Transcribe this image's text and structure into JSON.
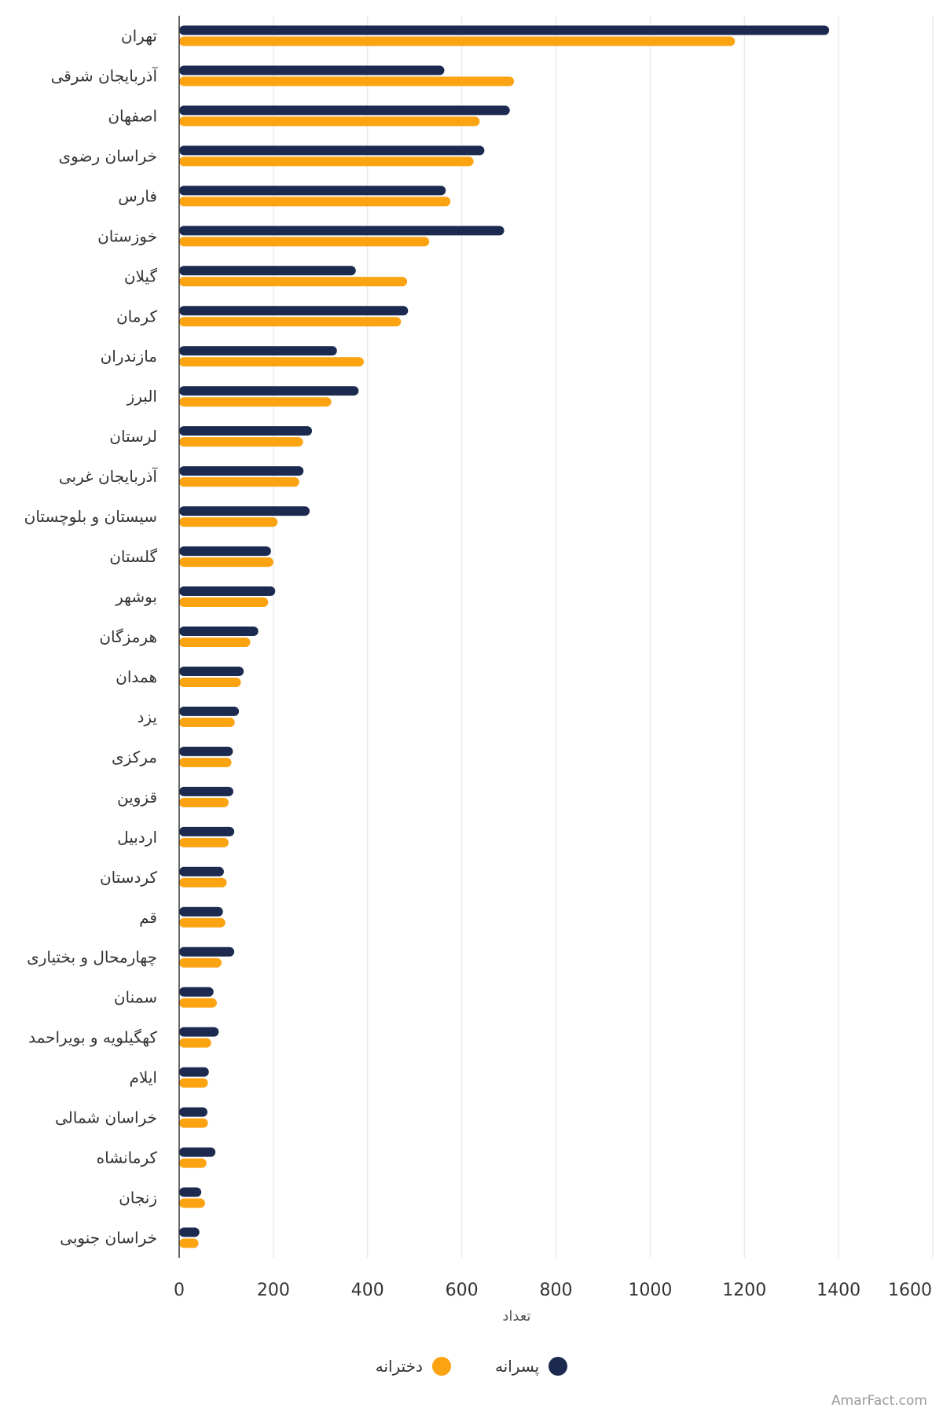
{
  "chart_data": {
    "type": "bar",
    "orientation": "horizontal",
    "xlabel": "تعداد",
    "xlim": [
      0,
      1600
    ],
    "x_ticks": [
      0,
      200,
      400,
      600,
      800,
      1000,
      1200,
      1400,
      1600
    ],
    "grid": "vertical",
    "legend_position": "bottom",
    "categories": [
      "تهران",
      "آذربایجان شرقی",
      "اصفهان",
      "خراسان رضوی",
      "فارس",
      "خوزستان",
      "گیلان",
      "کرمان",
      "مازندران",
      "البرز",
      "لرستان",
      "آذربایجان غربی",
      "سیستان و بلوچستان",
      "گلستان",
      "بوشهر",
      "هرمزگان",
      "همدان",
      "یزد",
      "مرکزی",
      "قزوین",
      "اردبیل",
      "کردستان",
      "قم",
      "چهارمحال و بختیاری",
      "سمنان",
      "کهگیلویه و بویراحمد",
      "ایلام",
      "خراسان شمالی",
      "کرمانشاه",
      "زنجان",
      "خراسان جنوبی"
    ],
    "series": [
      {
        "name": "پسرانه",
        "color": "#1b2a4e",
        "values": [
          1380,
          563,
          702,
          648,
          566,
          690,
          375,
          486,
          335,
          381,
          282,
          264,
          277,
          195,
          204,
          168,
          137,
          127,
          114,
          115,
          117,
          95,
          93,
          117,
          73,
          84,
          63,
          60,
          77,
          47,
          43
        ]
      },
      {
        "name": "دخترانه",
        "color": "#fca311",
        "values": [
          1180,
          711,
          638,
          625,
          576,
          531,
          484,
          471,
          392,
          323,
          263,
          255,
          209,
          200,
          189,
          151,
          131,
          118,
          111,
          105,
          105,
          101,
          98,
          90,
          80,
          68,
          61,
          61,
          58,
          55,
          41
        ]
      }
    ]
  },
  "credit": "AmarFact.com"
}
